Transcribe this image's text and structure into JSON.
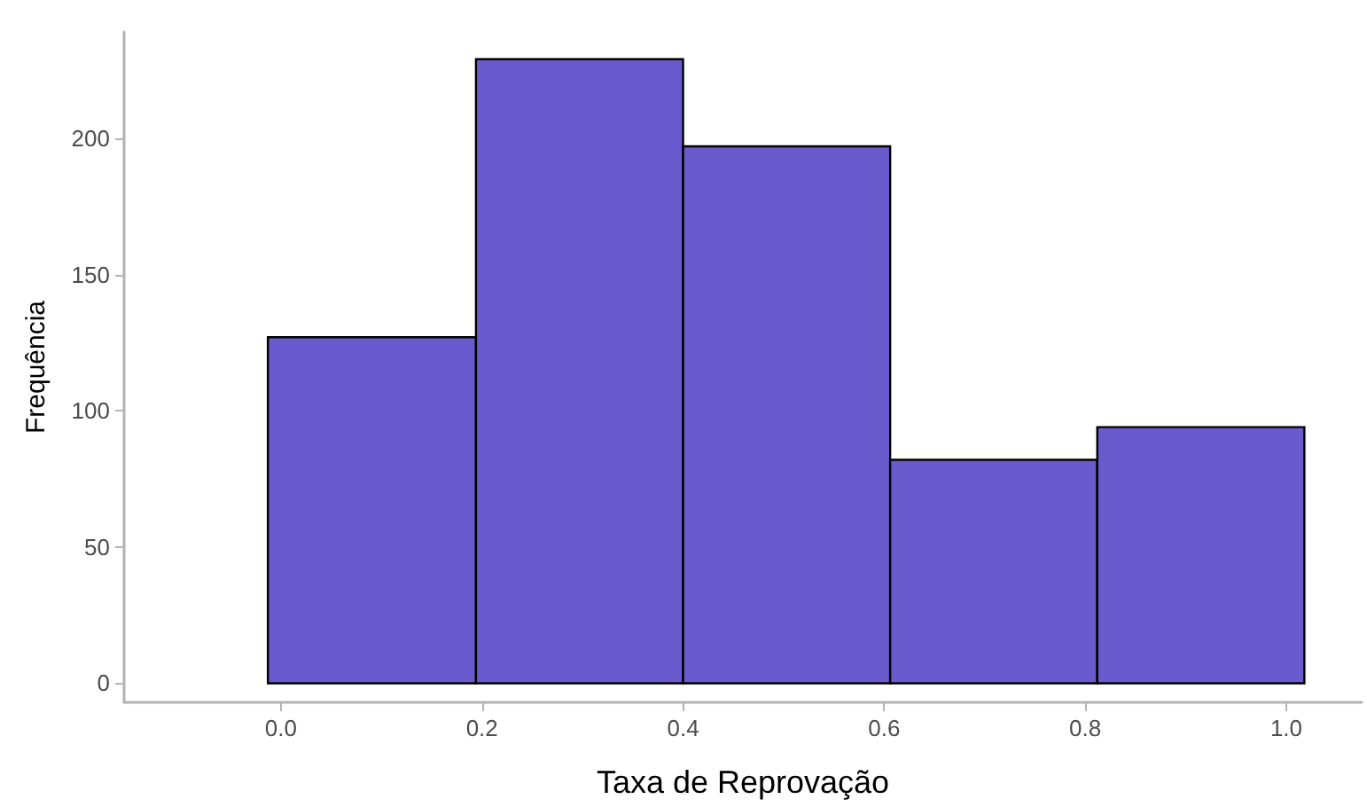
{
  "chart_data": {
    "type": "histogram",
    "xlabel": "Taxa de Reprovação",
    "ylabel": "Frequência",
    "bins": [
      -0.013,
      0.194,
      0.4,
      0.606,
      0.812,
      1.018
    ],
    "values": [
      127,
      229,
      197,
      82,
      94
    ],
    "color": "#6a5acd",
    "xlim": [
      -0.156,
      1.075
    ],
    "xticks": [
      {
        "value": 0,
        "label": "0.0"
      },
      {
        "value": 0.2,
        "label": "0.2"
      },
      {
        "value": 0.4,
        "label": "0.4"
      },
      {
        "value": 0.6,
        "label": "0.6"
      },
      {
        "value": 0.8,
        "label": "0.8"
      },
      {
        "value": 1,
        "label": "1.0"
      }
    ],
    "ylim": [
      -7,
      239
    ],
    "yticks": [
      0,
      50,
      100,
      150,
      200
    ],
    "grid": false
  }
}
